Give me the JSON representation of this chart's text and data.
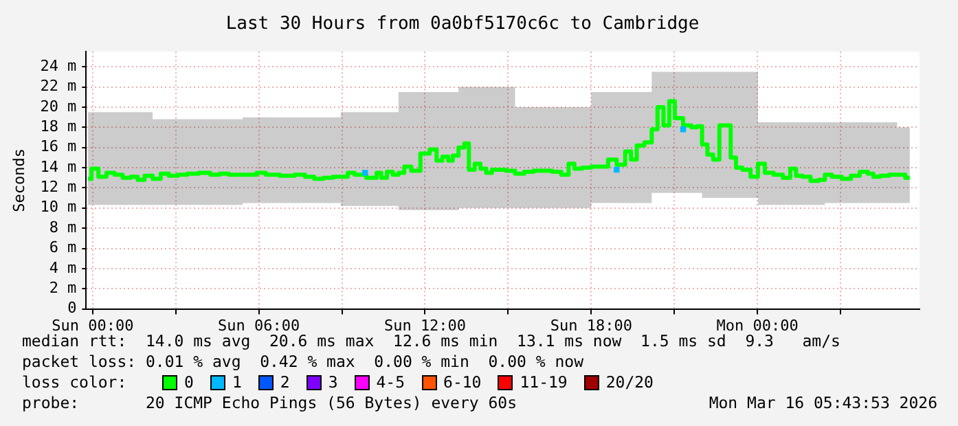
{
  "chart_data": {
    "type": "step",
    "title": "Last 30 Hours from 0a0bf5170c6c to Cambridge",
    "ylabel": "Seconds",
    "legend_title": "loss color:",
    "legend": "bottom",
    "grid": true,
    "marker": "none",
    "xlim": [
      "2026-03-14T23:46",
      "2026-03-16T05:51"
    ],
    "xticks": [
      {
        "value": "2026-03-15T00:00",
        "label": "Sun 00:00"
      },
      {
        "value": "2026-03-15T03:00",
        "label": null
      },
      {
        "value": "2026-03-15T06:00",
        "label": "Sun 06:00"
      },
      {
        "value": "2026-03-15T09:00",
        "label": null
      },
      {
        "value": "2026-03-15T12:00",
        "label": "Sun 12:00"
      },
      {
        "value": "2026-03-15T15:00",
        "label": null
      },
      {
        "value": "2026-03-15T18:00",
        "label": "Sun 18:00"
      },
      {
        "value": "2026-03-15T21:00",
        "label": null
      },
      {
        "value": "2026-03-16T00:00",
        "label": "Mon 00:00"
      },
      {
        "value": "2026-03-16T03:00",
        "label": null
      }
    ],
    "ylim": [
      0,
      25.5
    ],
    "yticks": [
      {
        "value": 0,
        "label": "0"
      },
      {
        "value": 2,
        "label": "2 m"
      },
      {
        "value": 4,
        "label": "4 m"
      },
      {
        "value": 6,
        "label": "6 m"
      },
      {
        "value": 8,
        "label": "8 m"
      },
      {
        "value": 10,
        "label": "10 m"
      },
      {
        "value": 12,
        "label": "12 m"
      },
      {
        "value": 14,
        "label": "14 m"
      },
      {
        "value": 16,
        "label": "16 m"
      },
      {
        "value": 18,
        "label": "18 m"
      },
      {
        "value": 20,
        "label": "20 m"
      },
      {
        "value": 22,
        "label": "22 m"
      },
      {
        "value": 24,
        "label": "24 m"
      }
    ],
    "series": [
      {
        "name": "0",
        "color": "#00ff00",
        "x": [
          "2026-03-14T23:50",
          "2026-03-15T00:05",
          "2026-03-15T00:20",
          "2026-03-15T00:40",
          "2026-03-15T00:55",
          "2026-03-15T01:15",
          "2026-03-15T01:30",
          "2026-03-15T01:45",
          "2026-03-15T02:00",
          "2026-03-15T02:20",
          "2026-03-15T02:35",
          "2026-03-15T02:55",
          "2026-03-15T03:15",
          "2026-03-15T03:35",
          "2026-03-15T04:05",
          "2026-03-15T04:25",
          "2026-03-15T04:45",
          "2026-03-15T05:05",
          "2026-03-15T05:45",
          "2026-03-15T06:05",
          "2026-03-15T06:25",
          "2026-03-15T07:05",
          "2026-03-15T07:30",
          "2026-03-15T07:50",
          "2026-03-15T08:10",
          "2026-03-15T08:30",
          "2026-03-15T08:50",
          "2026-03-15T09:05",
          "2026-03-15T09:20",
          "2026-03-15T09:35",
          "2026-03-15T09:50",
          "2026-03-15T10:10",
          "2026-03-15T10:20",
          "2026-03-15T10:30",
          "2026-03-15T10:45",
          "2026-03-15T10:55",
          "2026-03-15T11:10",
          "2026-03-15T11:20",
          "2026-03-15T11:40",
          "2026-03-15T12:00",
          "2026-03-15T12:20",
          "2026-03-15T12:30",
          "2026-03-15T12:45",
          "2026-03-15T12:55",
          "2026-03-15T13:05",
          "2026-03-15T13:20",
          "2026-03-15T13:30",
          "2026-03-15T13:40",
          "2026-03-15T13:55",
          "2026-03-15T14:05",
          "2026-03-15T14:20",
          "2026-03-15T14:30",
          "2026-03-15T14:45",
          "2026-03-15T15:05",
          "2026-03-15T15:25",
          "2026-03-15T15:45",
          "2026-03-15T16:05",
          "2026-03-15T16:25",
          "2026-03-15T16:45",
          "2026-03-15T17:05",
          "2026-03-15T17:17",
          "2026-03-15T17:30",
          "2026-03-15T17:50",
          "2026-03-15T18:10",
          "2026-03-15T18:30",
          "2026-03-15T18:43",
          "2026-03-15T18:55",
          "2026-03-15T19:07",
          "2026-03-15T19:20",
          "2026-03-15T19:32",
          "2026-03-15T19:45",
          "2026-03-15T20:05",
          "2026-03-15T20:17",
          "2026-03-15T20:30",
          "2026-03-15T20:43",
          "2026-03-15T20:55",
          "2026-03-15T21:07",
          "2026-03-15T21:19",
          "2026-03-15T21:31",
          "2026-03-15T21:43",
          "2026-03-15T21:55",
          "2026-03-15T22:05",
          "2026-03-15T22:18",
          "2026-03-15T22:30",
          "2026-03-15T22:45",
          "2026-03-15T22:57",
          "2026-03-15T23:07",
          "2026-03-15T23:20",
          "2026-03-15T23:35",
          "2026-03-15T23:55",
          "2026-03-16T00:07",
          "2026-03-16T00:25",
          "2026-03-16T00:45",
          "2026-03-16T01:05",
          "2026-03-16T01:17",
          "2026-03-16T01:30",
          "2026-03-16T01:45",
          "2026-03-16T02:05",
          "2026-03-16T02:20",
          "2026-03-16T02:32",
          "2026-03-16T02:50",
          "2026-03-16T03:15",
          "2026-03-16T03:30",
          "2026-03-16T03:53",
          "2026-03-16T04:05",
          "2026-03-16T04:17",
          "2026-03-16T04:35",
          "2026-03-16T04:55",
          "2026-03-16T05:10",
          "2026-03-16T05:30"
        ],
        "values": [
          12.9,
          13.9,
          13.1,
          13.5,
          13.3,
          13.0,
          13.1,
          12.8,
          13.2,
          12.9,
          13.4,
          13.2,
          13.3,
          13.4,
          13.5,
          13.3,
          13.4,
          13.3,
          13.3,
          13.5,
          13.3,
          13.2,
          13.3,
          13.1,
          12.9,
          13.0,
          13.1,
          13.1,
          13.5,
          13.3,
          null,
          13.0,
          13.5,
          13.0,
          13.6,
          13.3,
          13.5,
          14.1,
          13.7,
          15.4,
          15.8,
          14.7,
          15.1,
          14.7,
          15.2,
          16.0,
          16.4,
          13.8,
          14.4,
          13.9,
          13.5,
          13.8,
          13.8,
          13.7,
          13.4,
          13.6,
          13.7,
          13.7,
          13.6,
          13.3,
          14.4,
          13.9,
          14.0,
          14.1,
          14.1,
          14.8,
          null,
          14.3,
          15.6,
          14.8,
          16.2,
          16.5,
          17.8,
          20.0,
          18.2,
          20.6,
          18.9,
          null,
          18.2,
          18.0,
          18.1,
          16.3,
          15.3,
          14.8,
          18.2,
          18.2,
          15.0,
          14.0,
          13.8,
          13.1,
          14.4,
          13.5,
          13.3,
          13.0,
          13.9,
          13.2,
          13.1,
          12.7,
          12.8,
          13.3,
          13.1,
          12.9,
          13.2,
          13.6,
          13.4,
          13.1,
          13.2,
          13.3,
          13.3,
          13.0
        ],
        "lower": [
          10.3,
          10.3,
          10.3,
          10.3,
          10.3,
          10.3,
          10.3,
          10.3,
          10.3,
          10.3,
          10.3,
          10.3,
          10.3,
          10.3,
          10.3,
          10.3,
          10.3,
          10.3,
          10.5,
          10.5,
          10.5,
          10.5,
          10.5,
          10.5,
          10.5,
          10.5,
          10.5,
          10.2,
          10.2,
          10.2,
          10.2,
          10.2,
          10.2,
          10.2,
          10.2,
          10.2,
          9.8,
          9.8,
          9.8,
          9.8,
          9.8,
          9.8,
          9.8,
          9.8,
          9.8,
          10.0,
          10.0,
          10.0,
          10.0,
          10.0,
          10.0,
          10.0,
          10.0,
          10.0,
          10.0,
          10.0,
          10.0,
          10.0,
          10.0,
          10.0,
          10.0,
          10.0,
          10.0,
          10.5,
          10.5,
          10.5,
          10.5,
          10.5,
          10.5,
          10.5,
          10.5,
          10.5,
          11.5,
          11.5,
          11.5,
          11.5,
          11.5,
          11.5,
          11.5,
          11.5,
          11.5,
          11.0,
          11.0,
          11.0,
          11.0,
          11.0,
          11.0,
          11.0,
          11.0,
          11.0,
          10.3,
          10.3,
          10.3,
          10.3,
          10.3,
          10.3,
          10.3,
          10.3,
          10.3,
          10.5,
          10.5,
          10.5,
          10.5,
          10.5,
          10.5,
          10.5,
          10.5,
          10.5,
          10.5,
          10.5
        ],
        "upper": [
          19.5,
          19.5,
          19.5,
          19.5,
          19.5,
          19.5,
          19.5,
          19.5,
          19.5,
          18.8,
          18.8,
          18.8,
          18.8,
          18.8,
          18.8,
          18.8,
          18.8,
          18.8,
          19.0,
          19.0,
          19.0,
          19.0,
          19.0,
          19.0,
          19.0,
          19.0,
          19.0,
          19.5,
          19.5,
          19.5,
          19.5,
          19.5,
          19.5,
          19.5,
          19.5,
          19.5,
          21.5,
          21.5,
          21.5,
          21.5,
          21.5,
          21.5,
          21.5,
          21.5,
          21.5,
          22.0,
          22.0,
          22.0,
          22.0,
          22.0,
          22.0,
          22.0,
          22.0,
          22.0,
          20.0,
          20.0,
          20.0,
          20.0,
          20.0,
          20.0,
          20.0,
          20.0,
          20.0,
          21.5,
          21.5,
          21.5,
          21.5,
          21.5,
          21.5,
          21.5,
          21.5,
          21.5,
          23.5,
          23.5,
          23.5,
          23.5,
          23.5,
          23.5,
          23.5,
          23.5,
          23.5,
          23.5,
          23.5,
          23.5,
          23.5,
          23.5,
          23.5,
          23.5,
          23.5,
          23.5,
          18.5,
          18.5,
          18.5,
          18.5,
          18.5,
          18.5,
          18.5,
          18.5,
          18.5,
          18.5,
          18.5,
          18.5,
          18.5,
          18.5,
          18.5,
          18.5,
          18.5,
          18.5,
          18.0,
          18.0
        ]
      },
      {
        "name": "1",
        "color": "#00b8ff",
        "type": "scatter",
        "marker": "square",
        "x": [
          "2026-03-15T09:50",
          "2026-03-15T18:55",
          "2026-03-15T21:19"
        ],
        "values": [
          13.5,
          13.8,
          17.8
        ]
      },
      {
        "name": "2",
        "color": "#0059ff",
        "type": "scatter",
        "marker": "square"
      },
      {
        "name": "3",
        "color": "#7e00ff",
        "type": "scatter",
        "marker": "square"
      },
      {
        "name": "4-5",
        "color": "#ff00ff",
        "type": "scatter",
        "marker": "square"
      },
      {
        "name": "6-10",
        "color": "#ff5500",
        "type": "scatter",
        "marker": "square"
      },
      {
        "name": "11-19",
        "color": "#ff0000",
        "type": "scatter",
        "marker": "square"
      },
      {
        "name": "20/20",
        "color": "#a10000",
        "type": "scatter",
        "marker": "square"
      }
    ],
    "annotations": [
      "median rtt:  14.0 ms avg  20.6 ms max  12.6 ms min  13.1 ms now  1.5 ms sd  9.3   am/s",
      "packet loss: 0.01 % avg  0.42 % max  0.00 % min  0.00 % now",
      "probe:       20 ICMP Echo Pings (56 Bytes) every 60s",
      "Mon Mar 16 05:43:53 2026"
    ]
  }
}
